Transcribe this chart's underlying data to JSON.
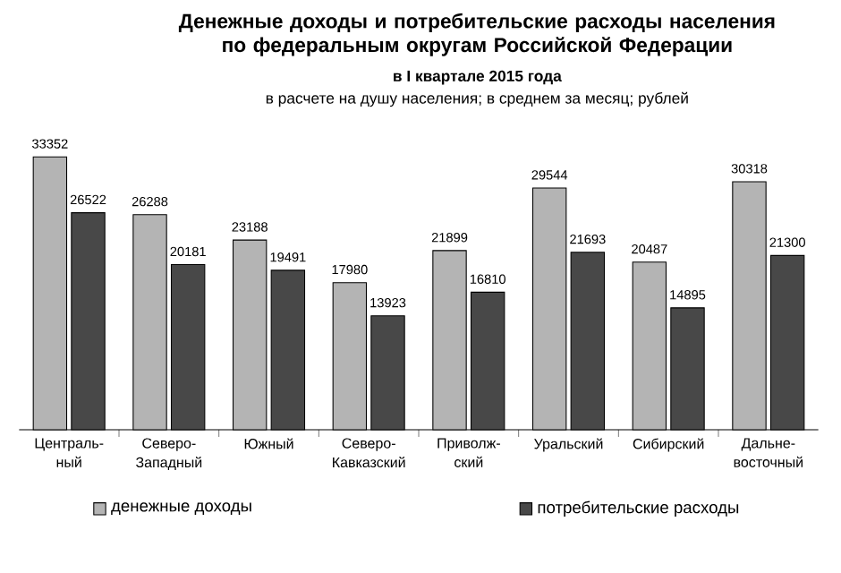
{
  "chart_data": {
    "type": "bar",
    "title": "Денежные доходы и потребительские расходы населения по федеральным округам Российской Федерации",
    "subtitle": "в I квартале 2015 года",
    "annotations": [
      "в расчете на душу населения; в среднем за месяц; рублей"
    ],
    "categories": [
      "Централь-ный",
      "Северо-Западный",
      "Южный",
      "Северо-Кавказский",
      "Приволж-ский",
      "Уральский",
      "Сибирский",
      "Дальне-восточный"
    ],
    "series": [
      {
        "name": "денежные доходы",
        "color": "#b4b4b4",
        "values": [
          33352,
          26288,
          23188,
          17980,
          21899,
          29544,
          20487,
          30318
        ]
      },
      {
        "name": "потребительские расходы",
        "color": "#484848",
        "values": [
          26522,
          20181,
          19491,
          13923,
          16810,
          21693,
          14895,
          21300
        ]
      }
    ],
    "data_labels": true,
    "legend": "bottom"
  }
}
